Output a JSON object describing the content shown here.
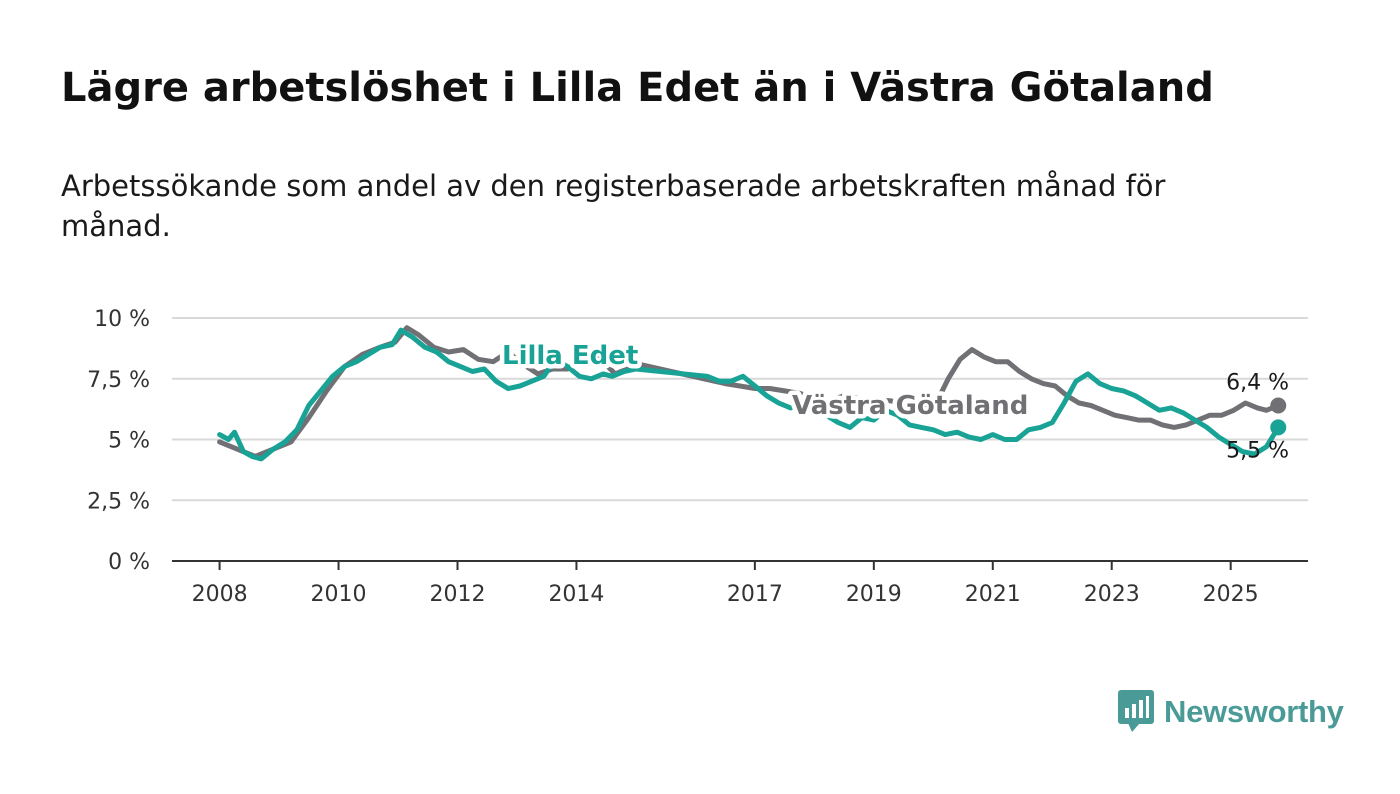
{
  "title": "Lägre arbetslöshet i Lilla Edet än i Västra Götaland",
  "subtitle": "Arbetssökande som andel av den registerbaserade arbetskraften månad för månad.",
  "brand": {
    "name": "Newsworthy",
    "icon": "newsworthy-logo-icon",
    "color": "#4a9b98"
  },
  "chart_data": {
    "type": "line",
    "title": "Lägre arbetslöshet i Lilla Edet än i Västra Götaland",
    "subtitle": "Arbetssökande som andel av den registerbaserade arbetskraften månad för månad.",
    "xlabel": "",
    "ylabel": "",
    "ylim": [
      0,
      10
    ],
    "xlim": [
      2007.2,
      2026.3
    ],
    "yticks": [
      0,
      2.5,
      5,
      7.5,
      10
    ],
    "ytick_labels": [
      "0 %",
      "2,5 %",
      "5 %",
      "7,5 %",
      "10 %"
    ],
    "xticks": [
      2008,
      2010,
      2012,
      2014,
      2017,
      2019,
      2021,
      2023,
      2025
    ],
    "xtick_labels": [
      "2008",
      "2010",
      "2012",
      "2014",
      "2017",
      "2019",
      "2021",
      "2023",
      "2025"
    ],
    "grid": true,
    "series": [
      {
        "name": "Västra Götaland",
        "color": "#707075",
        "end_label": "6,4 %",
        "points": [
          [
            2008.0,
            4.9
          ],
          [
            2008.3,
            4.6
          ],
          [
            2008.6,
            4.3
          ],
          [
            2008.9,
            4.6
          ],
          [
            2009.2,
            4.9
          ],
          [
            2009.5,
            5.9
          ],
          [
            2009.8,
            7.0
          ],
          [
            2010.1,
            8.0
          ],
          [
            2010.4,
            8.5
          ],
          [
            2010.7,
            8.8
          ],
          [
            2010.95,
            9.0
          ],
          [
            2011.15,
            9.6
          ],
          [
            2011.35,
            9.3
          ],
          [
            2011.6,
            8.8
          ],
          [
            2011.85,
            8.6
          ],
          [
            2012.1,
            8.7
          ],
          [
            2012.35,
            8.3
          ],
          [
            2012.6,
            8.2
          ],
          [
            2012.85,
            8.6
          ],
          [
            2013.1,
            8.1
          ],
          [
            2013.35,
            7.7
          ],
          [
            2013.6,
            7.9
          ],
          [
            2013.85,
            7.9
          ],
          [
            2014.1,
            8.3
          ],
          [
            2014.3,
            8.6
          ],
          [
            2014.45,
            8.2
          ],
          [
            2014.65,
            7.7
          ],
          [
            2014.85,
            7.9
          ],
          [
            2015.05,
            8.1
          ],
          [
            2016.5,
            7.3
          ],
          [
            2016.75,
            7.2
          ],
          [
            2017.0,
            7.1
          ],
          [
            2017.25,
            7.1
          ],
          [
            2017.5,
            7.0
          ],
          [
            2017.75,
            6.9
          ],
          [
            2018.0,
            6.7
          ],
          [
            2018.25,
            6.6
          ],
          [
            2018.5,
            6.8
          ],
          [
            2018.75,
            6.7
          ],
          [
            2019.0,
            6.6
          ],
          [
            2019.25,
            6.6
          ],
          [
            2019.5,
            6.5
          ],
          [
            2019.75,
            6.4
          ],
          [
            2020.05,
            6.5
          ],
          [
            2020.25,
            7.5
          ],
          [
            2020.45,
            8.3
          ],
          [
            2020.65,
            8.7
          ],
          [
            2020.85,
            8.4
          ],
          [
            2021.05,
            8.2
          ],
          [
            2021.25,
            8.2
          ],
          [
            2021.45,
            7.8
          ],
          [
            2021.65,
            7.5
          ],
          [
            2021.85,
            7.3
          ],
          [
            2022.05,
            7.2
          ],
          [
            2022.25,
            6.8
          ],
          [
            2022.45,
            6.5
          ],
          [
            2022.65,
            6.4
          ],
          [
            2022.85,
            6.2
          ],
          [
            2023.05,
            6.0
          ],
          [
            2023.25,
            5.9
          ],
          [
            2023.45,
            5.8
          ],
          [
            2023.65,
            5.8
          ],
          [
            2023.85,
            5.6
          ],
          [
            2024.05,
            5.5
          ],
          [
            2024.25,
            5.6
          ],
          [
            2024.45,
            5.8
          ],
          [
            2024.65,
            6.0
          ],
          [
            2024.85,
            6.0
          ],
          [
            2025.05,
            6.2
          ],
          [
            2025.25,
            6.5
          ],
          [
            2025.45,
            6.3
          ],
          [
            2025.6,
            6.2
          ],
          [
            2025.8,
            6.4
          ]
        ]
      },
      {
        "name": "Lilla Edet",
        "color": "#18a396",
        "end_label": "5,5 %",
        "points": [
          [
            2008.0,
            5.2
          ],
          [
            2008.15,
            5.0
          ],
          [
            2008.25,
            5.3
          ],
          [
            2008.4,
            4.5
          ],
          [
            2008.55,
            4.3
          ],
          [
            2008.7,
            4.2
          ],
          [
            2008.9,
            4.6
          ],
          [
            2009.1,
            4.9
          ],
          [
            2009.3,
            5.4
          ],
          [
            2009.5,
            6.4
          ],
          [
            2009.7,
            7.0
          ],
          [
            2009.9,
            7.6
          ],
          [
            2010.1,
            8.0
          ],
          [
            2010.3,
            8.2
          ],
          [
            2010.5,
            8.5
          ],
          [
            2010.7,
            8.8
          ],
          [
            2010.9,
            8.9
          ],
          [
            2011.05,
            9.5
          ],
          [
            2011.25,
            9.2
          ],
          [
            2011.45,
            8.8
          ],
          [
            2011.65,
            8.6
          ],
          [
            2011.85,
            8.2
          ],
          [
            2012.05,
            8.0
          ],
          [
            2012.25,
            7.8
          ],
          [
            2012.45,
            7.9
          ],
          [
            2012.65,
            7.4
          ],
          [
            2012.85,
            7.1
          ],
          [
            2013.05,
            7.2
          ],
          [
            2013.25,
            7.4
          ],
          [
            2013.45,
            7.6
          ],
          [
            2013.65,
            8.3
          ],
          [
            2013.85,
            8.0
          ],
          [
            2014.05,
            7.6
          ],
          [
            2014.25,
            7.5
          ],
          [
            2014.45,
            7.7
          ],
          [
            2014.6,
            7.6
          ],
          [
            2014.8,
            7.8
          ],
          [
            2015.0,
            7.9
          ],
          [
            2016.2,
            7.6
          ],
          [
            2016.4,
            7.4
          ],
          [
            2016.6,
            7.4
          ],
          [
            2016.8,
            7.6
          ],
          [
            2017.0,
            7.2
          ],
          [
            2017.2,
            6.8
          ],
          [
            2017.4,
            6.5
          ],
          [
            2017.6,
            6.3
          ],
          [
            2017.8,
            6.5
          ],
          [
            2018.0,
            6.2
          ],
          [
            2018.2,
            6.0
          ],
          [
            2018.4,
            5.7
          ],
          [
            2018.6,
            5.5
          ],
          [
            2018.8,
            5.9
          ],
          [
            2019.0,
            5.8
          ],
          [
            2019.2,
            6.2
          ],
          [
            2019.4,
            6.0
          ],
          [
            2019.6,
            5.6
          ],
          [
            2019.8,
            5.5
          ],
          [
            2020.0,
            5.4
          ],
          [
            2020.2,
            5.2
          ],
          [
            2020.4,
            5.3
          ],
          [
            2020.6,
            5.1
          ],
          [
            2020.8,
            5.0
          ],
          [
            2021.0,
            5.2
          ],
          [
            2021.2,
            5.0
          ],
          [
            2021.4,
            5.0
          ],
          [
            2021.6,
            5.4
          ],
          [
            2021.8,
            5.5
          ],
          [
            2022.0,
            5.7
          ],
          [
            2022.2,
            6.5
          ],
          [
            2022.4,
            7.4
          ],
          [
            2022.6,
            7.7
          ],
          [
            2022.8,
            7.3
          ],
          [
            2023.0,
            7.1
          ],
          [
            2023.2,
            7.0
          ],
          [
            2023.4,
            6.8
          ],
          [
            2023.6,
            6.5
          ],
          [
            2023.8,
            6.2
          ],
          [
            2024.0,
            6.3
          ],
          [
            2024.2,
            6.1
          ],
          [
            2024.4,
            5.8
          ],
          [
            2024.6,
            5.5
          ],
          [
            2024.8,
            5.1
          ],
          [
            2025.0,
            4.8
          ],
          [
            2025.2,
            4.5
          ],
          [
            2025.4,
            4.4
          ],
          [
            2025.6,
            4.7
          ],
          [
            2025.8,
            5.5
          ]
        ]
      }
    ]
  }
}
